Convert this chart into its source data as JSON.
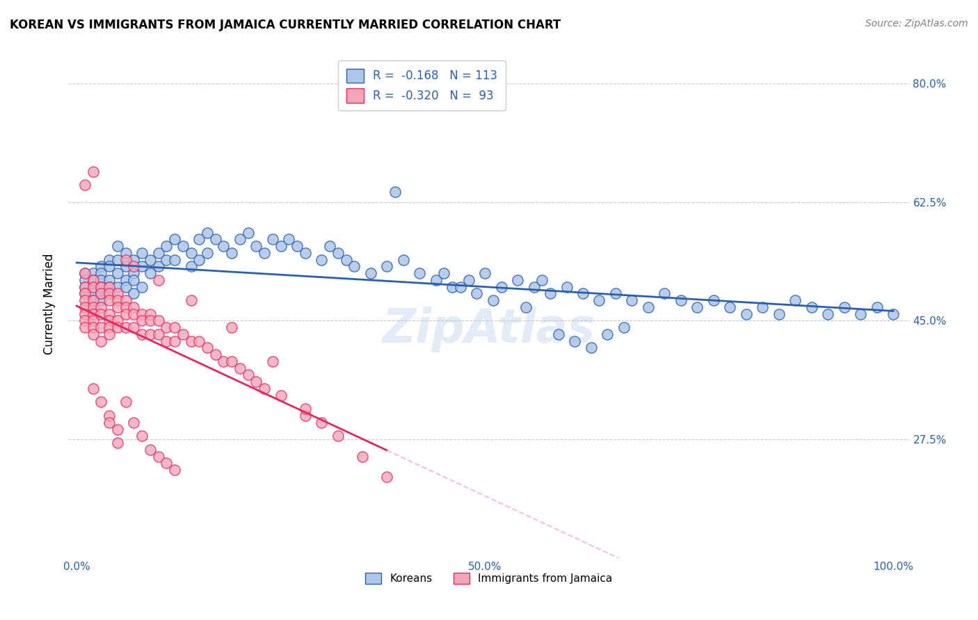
{
  "title": "KOREAN VS IMMIGRANTS FROM JAMAICA CURRENTLY MARRIED CORRELATION CHART",
  "source": "Source: ZipAtlas.com",
  "ylabel": "Currently Married",
  "xlabel": "",
  "watermark": "ZipAtlas",
  "legend_line1": "R =  -0.168   N = 113",
  "legend_line2": "R =  -0.320   N =  93",
  "korean_R": -0.168,
  "korean_N": 113,
  "jamaica_R": -0.32,
  "jamaica_N": 93,
  "korean_color": "#aec6e8",
  "korean_line_color": "#2b5fad",
  "jamaica_color": "#f4a7b9",
  "jamaica_line_color": "#e8265e",
  "jamaica_dashed_color": "#f4a7b9",
  "xlim": [
    0.0,
    1.0
  ],
  "ylim": [
    0.0,
    0.85
  ],
  "xticks": [
    0.0,
    0.1,
    0.2,
    0.3,
    0.4,
    0.5,
    0.6,
    0.7,
    0.8,
    0.9,
    1.0
  ],
  "yticks": [
    0.275,
    0.45,
    0.625,
    0.8
  ],
  "ytick_labels": [
    "27.5%",
    "45.0%",
    "62.5%",
    "80.0%"
  ],
  "xtick_labels": [
    "0.0%",
    "",
    "",
    "",
    "",
    "50.0%",
    "",
    "",
    "",
    "",
    "100.0%"
  ],
  "tick_color": "#2b5fad",
  "background_color": "#ffffff",
  "grid_color": "#cccccc",
  "korean_x": [
    0.01,
    0.01,
    0.01,
    0.01,
    0.02,
    0.02,
    0.02,
    0.02,
    0.02,
    0.02,
    0.02,
    0.03,
    0.03,
    0.03,
    0.03,
    0.03,
    0.03,
    0.04,
    0.04,
    0.04,
    0.04,
    0.04,
    0.05,
    0.05,
    0.05,
    0.05,
    0.06,
    0.06,
    0.06,
    0.06,
    0.07,
    0.07,
    0.07,
    0.07,
    0.08,
    0.08,
    0.08,
    0.09,
    0.09,
    0.1,
    0.1,
    0.11,
    0.11,
    0.12,
    0.12,
    0.13,
    0.14,
    0.14,
    0.15,
    0.15,
    0.16,
    0.16,
    0.17,
    0.18,
    0.19,
    0.2,
    0.21,
    0.22,
    0.23,
    0.24,
    0.25,
    0.26,
    0.27,
    0.28,
    0.3,
    0.31,
    0.32,
    0.33,
    0.34,
    0.36,
    0.38,
    0.4,
    0.42,
    0.44,
    0.46,
    0.48,
    0.5,
    0.52,
    0.54,
    0.56,
    0.58,
    0.6,
    0.62,
    0.64,
    0.66,
    0.68,
    0.7,
    0.72,
    0.74,
    0.76,
    0.78,
    0.8,
    0.82,
    0.84,
    0.86,
    0.88,
    0.9,
    0.92,
    0.94,
    0.96,
    0.98,
    1.0,
    0.39,
    0.45,
    0.47,
    0.49,
    0.51,
    0.55,
    0.57,
    0.59,
    0.61,
    0.63,
    0.65,
    0.67
  ],
  "korean_y": [
    0.52,
    0.51,
    0.5,
    0.49,
    0.52,
    0.51,
    0.5,
    0.49,
    0.48,
    0.47,
    0.46,
    0.53,
    0.52,
    0.51,
    0.5,
    0.49,
    0.48,
    0.54,
    0.53,
    0.51,
    0.5,
    0.49,
    0.56,
    0.54,
    0.52,
    0.5,
    0.55,
    0.53,
    0.51,
    0.5,
    0.54,
    0.52,
    0.51,
    0.49,
    0.55,
    0.53,
    0.5,
    0.54,
    0.52,
    0.55,
    0.53,
    0.56,
    0.54,
    0.57,
    0.54,
    0.56,
    0.55,
    0.53,
    0.57,
    0.54,
    0.58,
    0.55,
    0.57,
    0.56,
    0.55,
    0.57,
    0.58,
    0.56,
    0.55,
    0.57,
    0.56,
    0.57,
    0.56,
    0.55,
    0.54,
    0.56,
    0.55,
    0.54,
    0.53,
    0.52,
    0.53,
    0.54,
    0.52,
    0.51,
    0.5,
    0.51,
    0.52,
    0.5,
    0.51,
    0.5,
    0.49,
    0.5,
    0.49,
    0.48,
    0.49,
    0.48,
    0.47,
    0.49,
    0.48,
    0.47,
    0.48,
    0.47,
    0.46,
    0.47,
    0.46,
    0.48,
    0.47,
    0.46,
    0.47,
    0.46,
    0.47,
    0.46,
    0.64,
    0.52,
    0.5,
    0.49,
    0.48,
    0.47,
    0.51,
    0.43,
    0.42,
    0.41,
    0.43,
    0.44
  ],
  "jamaica_x": [
    0.01,
    0.01,
    0.01,
    0.01,
    0.01,
    0.01,
    0.01,
    0.01,
    0.01,
    0.02,
    0.02,
    0.02,
    0.02,
    0.02,
    0.02,
    0.02,
    0.02,
    0.03,
    0.03,
    0.03,
    0.03,
    0.03,
    0.03,
    0.04,
    0.04,
    0.04,
    0.04,
    0.04,
    0.04,
    0.04,
    0.05,
    0.05,
    0.05,
    0.05,
    0.05,
    0.06,
    0.06,
    0.06,
    0.06,
    0.07,
    0.07,
    0.07,
    0.08,
    0.08,
    0.08,
    0.09,
    0.09,
    0.09,
    0.1,
    0.1,
    0.11,
    0.11,
    0.12,
    0.12,
    0.13,
    0.14,
    0.15,
    0.16,
    0.17,
    0.18,
    0.19,
    0.2,
    0.21,
    0.22,
    0.23,
    0.25,
    0.28,
    0.3,
    0.32,
    0.35,
    0.38,
    0.02,
    0.06,
    0.07,
    0.1,
    0.14,
    0.19,
    0.24,
    0.28,
    0.02,
    0.03,
    0.04,
    0.04,
    0.05,
    0.05,
    0.06,
    0.07,
    0.08,
    0.09,
    0.1,
    0.11,
    0.12
  ],
  "jamaica_y": [
    0.52,
    0.5,
    0.49,
    0.48,
    0.47,
    0.46,
    0.45,
    0.44,
    0.65,
    0.51,
    0.5,
    0.48,
    0.47,
    0.46,
    0.45,
    0.44,
    0.43,
    0.5,
    0.49,
    0.47,
    0.46,
    0.44,
    0.42,
    0.5,
    0.49,
    0.48,
    0.46,
    0.45,
    0.44,
    0.43,
    0.49,
    0.48,
    0.47,
    0.45,
    0.44,
    0.48,
    0.47,
    0.46,
    0.44,
    0.47,
    0.46,
    0.44,
    0.46,
    0.45,
    0.43,
    0.46,
    0.45,
    0.43,
    0.45,
    0.43,
    0.44,
    0.42,
    0.44,
    0.42,
    0.43,
    0.42,
    0.42,
    0.41,
    0.4,
    0.39,
    0.39,
    0.38,
    0.37,
    0.36,
    0.35,
    0.34,
    0.31,
    0.3,
    0.28,
    0.25,
    0.22,
    0.67,
    0.54,
    0.53,
    0.51,
    0.48,
    0.44,
    0.39,
    0.32,
    0.35,
    0.33,
    0.31,
    0.3,
    0.29,
    0.27,
    0.33,
    0.3,
    0.28,
    0.26,
    0.25,
    0.24,
    0.23
  ]
}
